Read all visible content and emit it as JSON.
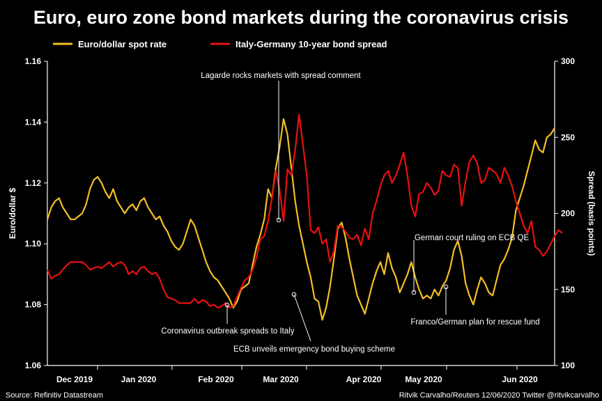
{
  "title": "Euro, euro zone bond markets during the coronavirus crisis",
  "legend": [
    {
      "label": "Euro/dollar spot rate",
      "color": "#f5c025"
    },
    {
      "label": "Italy-Germany 10-year bond spread",
      "color": "#e8110f"
    }
  ],
  "source": "Source: Refinitiv Datastream",
  "credit": "Ritvik Carvalho/Reuters 12/06/2020 Twitter @ritvikcarvalho",
  "chart_data": {
    "type": "line",
    "x_labels": [
      "Dec 2019",
      "Jan 2020",
      "Feb 2020",
      "Mar 2020",
      "Apr 2020",
      "May 2020",
      "Jun 2020"
    ],
    "left_axis": {
      "label": "Euro/dollar $",
      "ylim": [
        1.06,
        1.16
      ],
      "ticks": [
        "1.06",
        "1.08",
        "1.10",
        "1.12",
        "1.14",
        "1.16"
      ]
    },
    "right_axis": {
      "label": "Spread (basis points)",
      "ylim": [
        100,
        300
      ],
      "ticks": [
        "100",
        "150",
        "200",
        "250",
        "300"
      ]
    },
    "grid": false,
    "legend_position": "top",
    "series": [
      {
        "name": "Euro/dollar spot rate",
        "axis": "left",
        "color": "#f5c025",
        "values": [
          1.108,
          1.112,
          1.114,
          1.115,
          1.112,
          1.11,
          1.108,
          1.108,
          1.109,
          1.11,
          1.113,
          1.118,
          1.121,
          1.122,
          1.12,
          1.117,
          1.115,
          1.118,
          1.114,
          1.112,
          1.11,
          1.112,
          1.113,
          1.111,
          1.114,
          1.115,
          1.112,
          1.11,
          1.108,
          1.109,
          1.106,
          1.104,
          1.101,
          1.099,
          1.098,
          1.1,
          1.104,
          1.108,
          1.106,
          1.102,
          1.098,
          1.094,
          1.091,
          1.089,
          1.088,
          1.086,
          1.084,
          1.082,
          1.079,
          1.081,
          1.085,
          1.086,
          1.087,
          1.093,
          1.099,
          1.103,
          1.108,
          1.118,
          1.115,
          1.125,
          1.132,
          1.141,
          1.136,
          1.125,
          1.114,
          1.106,
          1.1,
          1.094,
          1.089,
          1.082,
          1.081,
          1.075,
          1.079,
          1.086,
          1.095,
          1.105,
          1.107,
          1.102,
          1.095,
          1.089,
          1.083,
          1.08,
          1.077,
          1.082,
          1.087,
          1.091,
          1.094,
          1.09,
          1.097,
          1.092,
          1.089,
          1.084,
          1.087,
          1.09,
          1.094,
          1.089,
          1.085,
          1.082,
          1.083,
          1.082,
          1.085,
          1.083,
          1.086,
          1.088,
          1.092,
          1.098,
          1.101,
          1.096,
          1.087,
          1.083,
          1.08,
          1.085,
          1.089,
          1.087,
          1.084,
          1.083,
          1.088,
          1.093,
          1.095,
          1.098,
          1.102,
          1.111,
          1.115,
          1.119,
          1.124,
          1.129,
          1.134,
          1.131,
          1.13,
          1.135,
          1.136,
          1.138
        ]
      },
      {
        "name": "Italy-Germany 10-year bond spread",
        "axis": "right",
        "color": "#e8110f",
        "values": [
          163,
          157,
          159,
          160,
          163,
          166,
          168,
          168,
          168,
          168,
          166,
          163,
          164,
          165,
          164,
          166,
          168,
          165,
          167,
          168,
          166,
          160,
          162,
          160,
          164,
          165,
          162,
          160,
          161,
          157,
          150,
          145,
          144,
          143,
          141,
          141,
          141,
          141,
          144,
          141,
          143,
          142,
          139,
          140,
          138,
          139,
          141,
          138,
          139,
          145,
          151,
          156,
          158,
          163,
          171,
          183,
          185,
          195,
          210,
          228,
          215,
          195,
          229,
          225,
          242,
          265,
          245,
          225,
          189,
          187,
          191,
          180,
          183,
          168,
          175,
          192,
          191,
          188,
          184,
          183,
          186,
          179,
          190,
          183,
          200,
          208,
          218,
          225,
          228,
          220,
          225,
          232,
          240,
          225,
          205,
          198,
          213,
          214,
          220,
          217,
          212,
          215,
          228,
          225,
          224,
          232,
          230,
          205,
          221,
          234,
          238,
          233,
          220,
          222,
          230,
          228,
          226,
          220,
          230,
          225,
          218,
          208,
          200,
          192,
          187,
          195,
          178,
          176,
          172,
          175,
          180,
          185,
          189,
          187
        ]
      }
    ],
    "annotations": [
      {
        "text": "Lagarde rocks markets with spread comment"
      },
      {
        "text": "Coronavirus outbreak spreads to Italy"
      },
      {
        "text": "ECB unveils emergency bond buying scheme"
      },
      {
        "text": "German court ruling on ECB QE"
      },
      {
        "text": "Franco/German plan for rescue fund"
      }
    ]
  }
}
